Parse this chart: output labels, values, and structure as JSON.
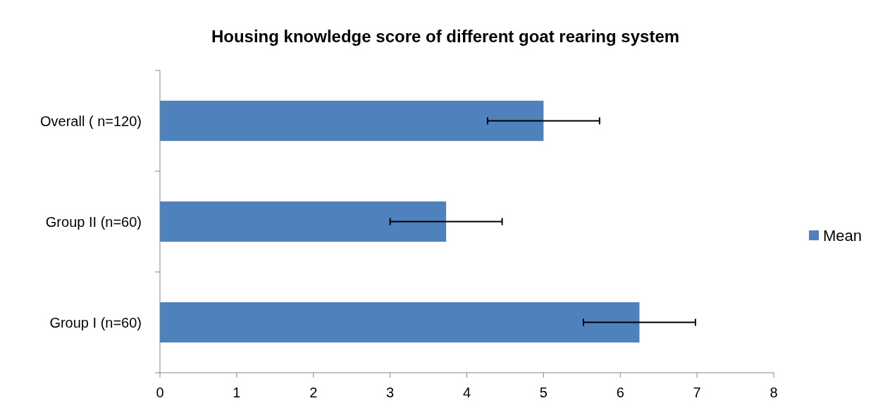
{
  "chart_data": {
    "type": "bar",
    "orientation": "horizontal",
    "title": "Housing knowledge score of different goat rearing system",
    "categories": [
      "Overall ( n=120)",
      "Group II   (n=60)",
      "Group I (n=60)"
    ],
    "series": [
      {
        "name": "Mean",
        "color": "#4f81bd",
        "values": [
          5.0,
          3.73,
          6.25
        ],
        "errors": [
          0.73,
          0.73,
          0.73
        ]
      }
    ],
    "xlim": [
      0,
      8
    ],
    "xticks": [
      0,
      1,
      2,
      3,
      4,
      5,
      6,
      7,
      8
    ],
    "grid": false,
    "legend": "right"
  }
}
